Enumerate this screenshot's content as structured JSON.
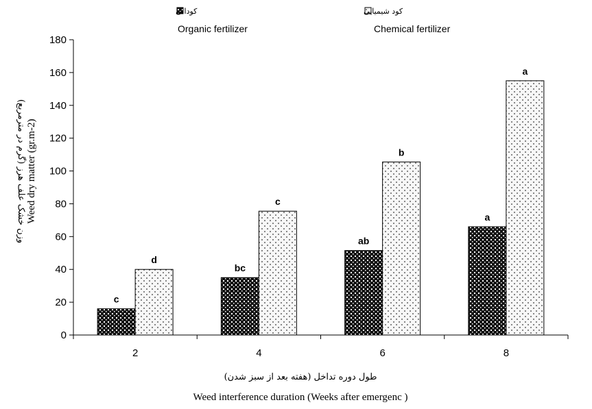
{
  "chart_data": {
    "type": "bar",
    "categories": [
      "2",
      "4",
      "6",
      "8"
    ],
    "series": [
      {
        "name": "Organic fertilizer",
        "name_fa": "کودالی",
        "pattern": "dense-dots-dark",
        "values": [
          16,
          35,
          51.5,
          66
        ],
        "labels": [
          "c",
          "bc",
          "ab",
          "a"
        ]
      },
      {
        "name": "Chemical fertilizer",
        "name_fa": "کود شیمیایی",
        "pattern": "sparse-dots-light",
        "values": [
          40,
          75.5,
          105.5,
          155
        ],
        "labels": [
          "d",
          "c",
          "b",
          "a"
        ]
      }
    ],
    "xlabel": "Weed interference duration (Weeks after emergenc )",
    "xlabel_fa": "طول دوره تداخل (هفته بعد از سبز شدن)",
    "ylabel": "Weed dry matter (gr.m-2)",
    "ylabel_fa": "وزن خشک علف هرز (گرم در مترمربع)",
    "ylim": [
      0,
      180
    ],
    "yticks": [
      0,
      20,
      40,
      60,
      80,
      100,
      120,
      140,
      160,
      180
    ],
    "grid": false,
    "legend_position": "top"
  },
  "colors": {
    "axis": "#000000",
    "organic_fill": "#1a1a1a",
    "chemical_fill": "#f4f4f4"
  }
}
